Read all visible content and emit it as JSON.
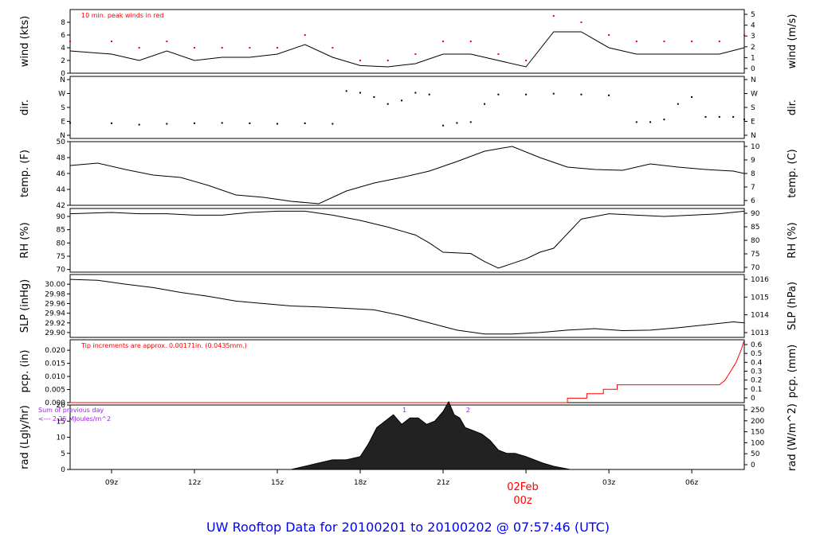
{
  "title": "UW Rooftop Data for 20100201  to  20100202 @ 07:57:46  (UTC)",
  "x_ticks": [
    "09z",
    "12z",
    "15z",
    "18z",
    "21z",
    "03z",
    "06z"
  ],
  "date_label": "02Feb",
  "date_sub": "00z",
  "colors": {
    "line": "#000000",
    "accent": "#ff0000",
    "note": "#a020f0",
    "title": "#0000ff"
  },
  "chart_data": [
    {
      "id": "wind",
      "type": "line",
      "ylabel": "wind (kts)",
      "ylabel_right": "wind (m/s)",
      "ylim": [
        0,
        10
      ],
      "yticks": [
        0,
        2,
        4,
        6,
        8
      ],
      "right_ticks": [
        "0",
        "1",
        "2",
        "3",
        "4",
        "5"
      ],
      "annotation": "10 min. peak winds in red",
      "x": [
        7.5,
        9,
        10,
        11,
        12,
        13,
        14,
        15,
        16,
        17,
        18,
        19,
        20,
        21,
        22,
        23,
        24,
        25,
        26,
        27,
        28,
        29,
        30,
        31,
        31.9
      ],
      "values": [
        3.5,
        3,
        2,
        3.5,
        2,
        2.5,
        2.5,
        3,
        4.5,
        2.5,
        1.2,
        1,
        1.5,
        3,
        3,
        2,
        1,
        6.5,
        6.5,
        4,
        3,
        3,
        3,
        3,
        4
      ],
      "peaks": [
        5,
        5,
        4,
        5,
        4,
        4,
        4,
        4,
        6,
        4,
        2,
        2,
        3,
        5,
        5,
        3,
        2,
        9,
        8,
        6,
        5,
        5,
        5,
        5,
        6
      ]
    },
    {
      "id": "dir",
      "type": "scatter",
      "ylabel": "dir.",
      "ylabel_right": "dir.",
      "ylim": [
        0,
        360
      ],
      "ytick_labels": [
        "N",
        "E",
        "S",
        "W",
        "N"
      ],
      "x": [
        7.5,
        9,
        10,
        11,
        12,
        13,
        14,
        15,
        16,
        17,
        17.5,
        18,
        18.5,
        19,
        19.5,
        20,
        20.5,
        21,
        21.5,
        22,
        22.5,
        23,
        24,
        25,
        26,
        27,
        28,
        28.5,
        29,
        29.5,
        30,
        30.5,
        31,
        31.5,
        31.9
      ],
      "values": [
        90,
        88,
        80,
        85,
        88,
        90,
        88,
        85,
        88,
        85,
        275,
        265,
        240,
        200,
        220,
        265,
        255,
        75,
        90,
        95,
        200,
        255,
        255,
        260,
        255,
        250,
        95,
        95,
        110,
        200,
        240,
        125,
        125,
        125,
        110
      ]
    },
    {
      "id": "temp",
      "type": "line",
      "ylabel": "temp. (F)",
      "ylabel_right": "temp. (C)",
      "ylim": [
        42,
        50
      ],
      "yticks": [
        42,
        44,
        46,
        48,
        50
      ],
      "right_ticks": [
        "6",
        "7",
        "8",
        "9",
        "10"
      ],
      "x": [
        7.5,
        8.5,
        9.5,
        10.5,
        11.5,
        12.5,
        13.5,
        14.5,
        15.5,
        16.5,
        17.5,
        18.5,
        19.5,
        20.5,
        21.5,
        22.5,
        23.5,
        24.5,
        25.5,
        26.5,
        27.5,
        28.5,
        29.5,
        30.5,
        31.5,
        31.9
      ],
      "values": [
        47.0,
        47.3,
        46.5,
        45.8,
        45.5,
        44.5,
        43.3,
        43.0,
        42.5,
        42.2,
        43.8,
        44.8,
        45.5,
        46.3,
        47.5,
        48.8,
        49.4,
        48.0,
        46.8,
        46.5,
        46.4,
        47.2,
        46.8,
        46.5,
        46.3,
        46.0
      ]
    },
    {
      "id": "rh",
      "type": "line",
      "ylabel": "RH (%)",
      "ylabel_right": "RH (%)",
      "ylim": [
        69,
        93
      ],
      "yticks": [
        70,
        75,
        80,
        85,
        90
      ],
      "right_ticks": [
        "70",
        "75",
        "80",
        "85",
        "90"
      ],
      "x": [
        7.5,
        9,
        10,
        11,
        12,
        13,
        14,
        15,
        16,
        17,
        18,
        19,
        20,
        20.5,
        21,
        22,
        22.5,
        23,
        24,
        24.5,
        25,
        26,
        27,
        28,
        29,
        30,
        31,
        31.9
      ],
      "values": [
        91,
        91.5,
        91,
        91,
        90.5,
        90.5,
        91.5,
        92,
        92,
        90.5,
        88.5,
        86,
        83,
        80,
        76.5,
        76,
        73,
        70.5,
        74,
        76.5,
        78,
        89,
        91,
        90.5,
        90,
        90.5,
        91,
        92
      ]
    },
    {
      "id": "slp",
      "type": "line",
      "ylabel": "SLP (inHg)",
      "ylabel_right": "SLP (hPa)",
      "ylim": [
        29.89,
        30.02
      ],
      "yticks": [
        29.9,
        29.92,
        29.94,
        29.96,
        29.98,
        30.0
      ],
      "right_ticks": [
        "1013",
        "1014",
        "1015",
        "1016"
      ],
      "x": [
        7.5,
        8.5,
        9.5,
        10.5,
        11.5,
        12.5,
        13.5,
        14.5,
        15.5,
        16.5,
        17.5,
        18.5,
        19.5,
        20.5,
        21.5,
        22.5,
        23.5,
        24.5,
        25.5,
        26.5,
        27.5,
        28.5,
        29.5,
        30.5,
        31.5,
        31.9
      ],
      "values": [
        30.01,
        30.008,
        30.0,
        29.993,
        29.983,
        29.975,
        29.965,
        29.96,
        29.955,
        29.953,
        29.95,
        29.947,
        29.935,
        29.92,
        29.905,
        29.897,
        29.897,
        29.9,
        29.905,
        29.908,
        29.904,
        29.905,
        29.91,
        29.916,
        29.922,
        29.92
      ]
    },
    {
      "id": "pcp",
      "type": "line",
      "ylabel": "pcp. (in)",
      "ylabel_right": "pcp. (mm)",
      "ylim": [
        0,
        0.024
      ],
      "yticks": [
        0.0,
        0.005,
        0.01,
        0.015,
        0.02
      ],
      "right_ticks": [
        "0",
        "0.1",
        "0.2",
        "0.3",
        "0.4",
        "0.5",
        "0.6"
      ],
      "annotation": "Tip increments are approx. 0.00171in. (0.0435mm.)",
      "x": [
        7.5,
        25.5,
        25.5,
        26.2,
        26.2,
        26.8,
        26.8,
        27.3,
        27.3,
        27.8,
        27.8,
        31.0,
        31.2,
        31.4,
        31.6,
        31.8,
        31.9
      ],
      "values": [
        0,
        0,
        0.0017,
        0.0017,
        0.0034,
        0.0034,
        0.0051,
        0.0051,
        0.0068,
        0.0068,
        0.0068,
        0.0068,
        0.0085,
        0.0119,
        0.0153,
        0.0205,
        0.024
      ]
    },
    {
      "id": "rad",
      "type": "area",
      "ylabel": "rad (Lgly/hr)",
      "ylabel_right": "rad (W/m^2)",
      "ylim": [
        0,
        20
      ],
      "yticks": [
        0,
        5,
        10,
        15,
        20
      ],
      "right_ticks": [
        "0",
        "50",
        "100",
        "150",
        "200",
        "250"
      ],
      "annotation_1": "Sum of previous day",
      "annotation_2": "<--- 2.25 MJoules/m^2",
      "markers": [
        "1",
        "2"
      ],
      "x": [
        15.5,
        16,
        16.5,
        17,
        17.5,
        18,
        18.3,
        18.6,
        18.9,
        19.2,
        19.5,
        19.8,
        20.1,
        20.4,
        20.7,
        21,
        21.2,
        21.4,
        21.6,
        21.8,
        22.1,
        22.4,
        22.7,
        23,
        23.3,
        23.6,
        24,
        24.3,
        24.6,
        25,
        25.3,
        25.6
      ],
      "values": [
        0,
        1,
        2,
        3,
        3,
        4,
        8,
        13,
        15,
        17,
        14,
        16,
        16,
        14,
        15,
        18,
        21,
        17,
        16,
        13,
        12,
        11,
        9,
        6,
        5,
        5,
        4,
        3,
        2,
        1,
        0.5,
        0
      ]
    }
  ]
}
